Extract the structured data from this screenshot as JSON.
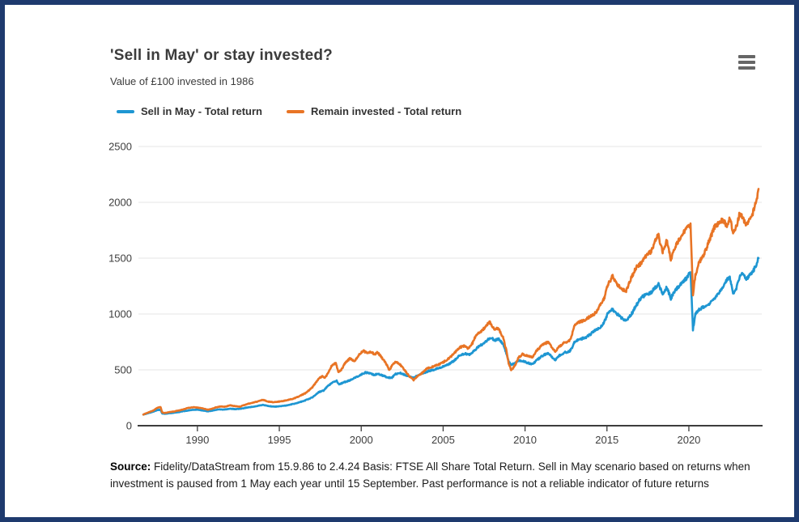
{
  "frame": {
    "border_color": "#1e3a6e",
    "background": "#ffffff"
  },
  "header": {
    "title": "'Sell in May' or stay invested?",
    "subtitle": "Value of £100 invested in 1986"
  },
  "menu": {
    "icon": "hamburger-menu-icon",
    "color": "#666666"
  },
  "legend": [
    {
      "label": "Sell in May - Total return",
      "color": "#1e96d2"
    },
    {
      "label": "Remain invested - Total return",
      "color": "#e87425"
    }
  ],
  "source": {
    "label": "Source:",
    "text": " Fidelity/DataStream from 15.9.86 to 2.4.24 Basis: FTSE All Share Total Return. Sell in May scenario based on returns when investment is paused from 1 May each year until 15 September. Past performance is not a reliable indicator of future returns"
  },
  "chart_data": {
    "type": "line",
    "title": "'Sell in May' or stay invested?",
    "subtitle": "Value of £100 invested in 1986",
    "xlabel": "",
    "ylabel": "",
    "xlim": [
      1986.4,
      2024.45
    ],
    "ylim": [
      0,
      2500
    ],
    "xticks": [
      1990,
      1995,
      2000,
      2005,
      2010,
      2015,
      2020
    ],
    "yticks": [
      0,
      500,
      1000,
      1500,
      2000,
      2500
    ],
    "grid": "horizontal",
    "legend_position": "top-left",
    "axis_color": "#3d3d3d",
    "grid_color": "#e6e6e6",
    "style": {
      "line_width": 2.6,
      "jitter_pct": 1.2
    },
    "series": [
      {
        "name": "Sell in May - Total return",
        "color": "#1e96d2",
        "points": [
          [
            1986.7,
            100
          ],
          [
            1987.0,
            112
          ],
          [
            1987.3,
            125
          ],
          [
            1987.55,
            140
          ],
          [
            1987.75,
            143
          ],
          [
            1987.85,
            110
          ],
          [
            1988.0,
            106
          ],
          [
            1988.4,
            113
          ],
          [
            1988.8,
            120
          ],
          [
            1989.2,
            131
          ],
          [
            1989.6,
            140
          ],
          [
            1990.0,
            143
          ],
          [
            1990.35,
            136
          ],
          [
            1990.65,
            128
          ],
          [
            1991.0,
            137
          ],
          [
            1991.3,
            146
          ],
          [
            1991.6,
            144
          ],
          [
            1992.0,
            152
          ],
          [
            1992.35,
            148
          ],
          [
            1992.7,
            153
          ],
          [
            1993.0,
            162
          ],
          [
            1993.5,
            172
          ],
          [
            1994.0,
            186
          ],
          [
            1994.35,
            176
          ],
          [
            1994.7,
            170
          ],
          [
            1995.0,
            173
          ],
          [
            1995.5,
            183
          ],
          [
            1996.0,
            200
          ],
          [
            1996.5,
            222
          ],
          [
            1997.0,
            252
          ],
          [
            1997.4,
            300
          ],
          [
            1997.7,
            315
          ],
          [
            1998.0,
            360
          ],
          [
            1998.3,
            392
          ],
          [
            1998.5,
            402
          ],
          [
            1998.65,
            368
          ],
          [
            1998.9,
            386
          ],
          [
            1999.2,
            400
          ],
          [
            1999.5,
            420
          ],
          [
            1999.8,
            442
          ],
          [
            2000.05,
            462
          ],
          [
            2000.25,
            476
          ],
          [
            2000.5,
            470
          ],
          [
            2000.8,
            455
          ],
          [
            2001.0,
            465
          ],
          [
            2001.3,
            450
          ],
          [
            2001.6,
            432
          ],
          [
            2001.85,
            428
          ],
          [
            2002.1,
            462
          ],
          [
            2002.4,
            470
          ],
          [
            2002.7,
            452
          ],
          [
            2003.0,
            436
          ],
          [
            2003.2,
            430
          ],
          [
            2003.5,
            455
          ],
          [
            2003.8,
            470
          ],
          [
            2004.1,
            488
          ],
          [
            2004.5,
            505
          ],
          [
            2004.9,
            525
          ],
          [
            2005.3,
            545
          ],
          [
            2005.7,
            585
          ],
          [
            2006.0,
            630
          ],
          [
            2006.35,
            645
          ],
          [
            2006.6,
            635
          ],
          [
            2006.85,
            665
          ],
          [
            2007.1,
            700
          ],
          [
            2007.4,
            730
          ],
          [
            2007.7,
            765
          ],
          [
            2007.9,
            790
          ],
          [
            2008.15,
            765
          ],
          [
            2008.4,
            778
          ],
          [
            2008.65,
            730
          ],
          [
            2008.85,
            650
          ],
          [
            2009.0,
            580
          ],
          [
            2009.15,
            545
          ],
          [
            2009.35,
            558
          ],
          [
            2009.6,
            585
          ],
          [
            2009.85,
            580
          ],
          [
            2010.1,
            565
          ],
          [
            2010.45,
            550
          ],
          [
            2010.75,
            590
          ],
          [
            2011.05,
            625
          ],
          [
            2011.4,
            650
          ],
          [
            2011.65,
            615
          ],
          [
            2011.85,
            590
          ],
          [
            2012.1,
            630
          ],
          [
            2012.4,
            655
          ],
          [
            2012.7,
            665
          ],
          [
            2012.85,
            690
          ],
          [
            2013.0,
            750
          ],
          [
            2013.35,
            775
          ],
          [
            2013.7,
            790
          ],
          [
            2014.0,
            820
          ],
          [
            2014.3,
            860
          ],
          [
            2014.6,
            880
          ],
          [
            2014.85,
            930
          ],
          [
            2015.05,
            1010
          ],
          [
            2015.35,
            1040
          ],
          [
            2015.7,
            990
          ],
          [
            2016.0,
            950
          ],
          [
            2016.2,
            940
          ],
          [
            2016.5,
            1000
          ],
          [
            2016.8,
            1080
          ],
          [
            2017.1,
            1150
          ],
          [
            2017.4,
            1175
          ],
          [
            2017.7,
            1195
          ],
          [
            2018.0,
            1245
          ],
          [
            2018.15,
            1265
          ],
          [
            2018.4,
            1180
          ],
          [
            2018.65,
            1240
          ],
          [
            2018.9,
            1140
          ],
          [
            2019.2,
            1220
          ],
          [
            2019.5,
            1270
          ],
          [
            2019.85,
            1320
          ],
          [
            2020.1,
            1380
          ],
          [
            2020.25,
            862
          ],
          [
            2020.4,
            1000
          ],
          [
            2020.6,
            1035
          ],
          [
            2020.8,
            1055
          ],
          [
            2021.0,
            1065
          ],
          [
            2021.3,
            1095
          ],
          [
            2021.6,
            1140
          ],
          [
            2021.9,
            1200
          ],
          [
            2022.1,
            1255
          ],
          [
            2022.3,
            1300
          ],
          [
            2022.5,
            1330
          ],
          [
            2022.7,
            1185
          ],
          [
            2022.9,
            1230
          ],
          [
            2023.1,
            1330
          ],
          [
            2023.3,
            1360
          ],
          [
            2023.5,
            1310
          ],
          [
            2023.7,
            1340
          ],
          [
            2023.9,
            1380
          ],
          [
            2024.05,
            1420
          ],
          [
            2024.15,
            1445
          ],
          [
            2024.25,
            1500
          ]
        ]
      },
      {
        "name": "Remain invested - Total return",
        "color": "#e87425",
        "points": [
          [
            1986.7,
            100
          ],
          [
            1987.0,
            118
          ],
          [
            1987.3,
            135
          ],
          [
            1987.55,
            160
          ],
          [
            1987.75,
            168
          ],
          [
            1987.85,
            120
          ],
          [
            1988.0,
            113
          ],
          [
            1988.3,
            122
          ],
          [
            1988.6,
            128
          ],
          [
            1989.0,
            140
          ],
          [
            1989.4,
            158
          ],
          [
            1989.8,
            166
          ],
          [
            1990.1,
            160
          ],
          [
            1990.4,
            152
          ],
          [
            1990.65,
            143
          ],
          [
            1990.9,
            152
          ],
          [
            1991.1,
            163
          ],
          [
            1991.4,
            172
          ],
          [
            1991.7,
            170
          ],
          [
            1992.0,
            182
          ],
          [
            1992.3,
            176
          ],
          [
            1992.6,
            170
          ],
          [
            1992.9,
            188
          ],
          [
            1993.2,
            200
          ],
          [
            1993.6,
            214
          ],
          [
            1994.0,
            232
          ],
          [
            1994.3,
            216
          ],
          [
            1994.6,
            210
          ],
          [
            1995.0,
            216
          ],
          [
            1995.4,
            226
          ],
          [
            1995.8,
            240
          ],
          [
            1996.2,
            262
          ],
          [
            1996.6,
            292
          ],
          [
            1997.0,
            340
          ],
          [
            1997.4,
            420
          ],
          [
            1997.6,
            442
          ],
          [
            1997.8,
            430
          ],
          [
            1998.0,
            480
          ],
          [
            1998.2,
            540
          ],
          [
            1998.45,
            562
          ],
          [
            1998.6,
            480
          ],
          [
            1998.8,
            502
          ],
          [
            1999.0,
            560
          ],
          [
            1999.3,
            600
          ],
          [
            1999.6,
            580
          ],
          [
            1999.9,
            645
          ],
          [
            2000.15,
            668
          ],
          [
            2000.4,
            648
          ],
          [
            2000.6,
            662
          ],
          [
            2000.8,
            640
          ],
          [
            2001.0,
            655
          ],
          [
            2001.2,
            620
          ],
          [
            2001.5,
            560
          ],
          [
            2001.72,
            495
          ],
          [
            2001.9,
            545
          ],
          [
            2002.1,
            575
          ],
          [
            2002.35,
            550
          ],
          [
            2002.6,
            508
          ],
          [
            2002.8,
            468
          ],
          [
            2003.0,
            432
          ],
          [
            2003.2,
            410
          ],
          [
            2003.45,
            445
          ],
          [
            2003.7,
            470
          ],
          [
            2004.0,
            512
          ],
          [
            2004.4,
            530
          ],
          [
            2004.8,
            552
          ],
          [
            2005.2,
            585
          ],
          [
            2005.6,
            635
          ],
          [
            2006.0,
            700
          ],
          [
            2006.3,
            715
          ],
          [
            2006.55,
            690
          ],
          [
            2006.8,
            740
          ],
          [
            2007.0,
            810
          ],
          [
            2007.3,
            840
          ],
          [
            2007.55,
            880
          ],
          [
            2007.85,
            930
          ],
          [
            2008.1,
            870
          ],
          [
            2008.4,
            868
          ],
          [
            2008.65,
            790
          ],
          [
            2008.85,
            680
          ],
          [
            2009.0,
            560
          ],
          [
            2009.15,
            495
          ],
          [
            2009.35,
            530
          ],
          [
            2009.6,
            610
          ],
          [
            2009.85,
            640
          ],
          [
            2010.1,
            630
          ],
          [
            2010.45,
            610
          ],
          [
            2010.75,
            680
          ],
          [
            2011.05,
            720
          ],
          [
            2011.4,
            750
          ],
          [
            2011.65,
            700
          ],
          [
            2011.85,
            660
          ],
          [
            2012.1,
            710
          ],
          [
            2012.4,
            745
          ],
          [
            2012.7,
            760
          ],
          [
            2012.85,
            800
          ],
          [
            2013.0,
            900
          ],
          [
            2013.35,
            930
          ],
          [
            2013.7,
            950
          ],
          [
            2014.0,
            980
          ],
          [
            2014.3,
            1010
          ],
          [
            2014.6,
            1080
          ],
          [
            2014.85,
            1150
          ],
          [
            2015.05,
            1260
          ],
          [
            2015.35,
            1340
          ],
          [
            2015.6,
            1270
          ],
          [
            2015.9,
            1230
          ],
          [
            2016.15,
            1200
          ],
          [
            2016.5,
            1330
          ],
          [
            2016.8,
            1420
          ],
          [
            2017.1,
            1455
          ],
          [
            2017.4,
            1520
          ],
          [
            2017.7,
            1560
          ],
          [
            2018.0,
            1680
          ],
          [
            2018.15,
            1700
          ],
          [
            2018.4,
            1560
          ],
          [
            2018.65,
            1660
          ],
          [
            2018.9,
            1490
          ],
          [
            2019.2,
            1610
          ],
          [
            2019.5,
            1690
          ],
          [
            2019.85,
            1770
          ],
          [
            2020.1,
            1800
          ],
          [
            2020.25,
            1160
          ],
          [
            2020.4,
            1350
          ],
          [
            2020.6,
            1450
          ],
          [
            2020.8,
            1505
          ],
          [
            2021.0,
            1560
          ],
          [
            2021.3,
            1680
          ],
          [
            2021.6,
            1790
          ],
          [
            2021.9,
            1820
          ],
          [
            2022.1,
            1845
          ],
          [
            2022.3,
            1790
          ],
          [
            2022.5,
            1860
          ],
          [
            2022.7,
            1730
          ],
          [
            2022.9,
            1780
          ],
          [
            2023.1,
            1900
          ],
          [
            2023.3,
            1860
          ],
          [
            2023.5,
            1800
          ],
          [
            2023.7,
            1850
          ],
          [
            2023.9,
            1905
          ],
          [
            2024.05,
            1975
          ],
          [
            2024.15,
            2030
          ],
          [
            2024.25,
            2120
          ]
        ]
      }
    ]
  }
}
